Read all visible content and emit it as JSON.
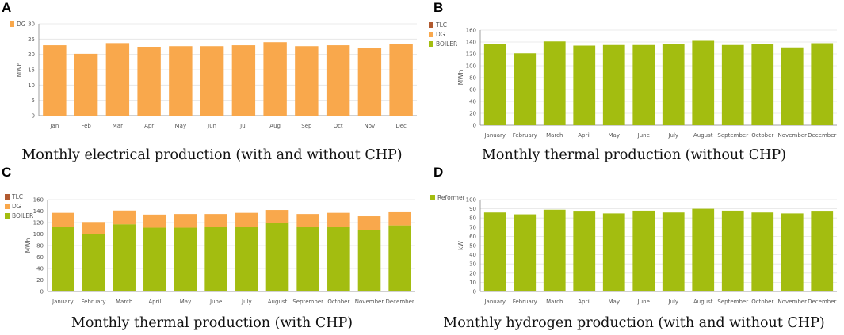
{
  "colors": {
    "BOILER": "#a3bd10",
    "DG": "#f9a84c",
    "TLC": "#b15a30",
    "Reformer": "#a3bd10",
    "grid": "#e4e4e4",
    "axis": "#888888"
  },
  "chart_data": [
    {
      "id": "A",
      "letter": "A",
      "caption": "Monthly electrical production (with and without CHP)",
      "type": "bar",
      "ylabel": "MWh",
      "ylim": [
        0,
        30
      ],
      "yticks": [
        0,
        5,
        10,
        15,
        20,
        25,
        30
      ],
      "categories": [
        "Jan",
        "Feb",
        "Mar",
        "Apr",
        "May",
        "Jun",
        "Jul",
        "Aug",
        "Sep",
        "Oct",
        "Nov",
        "Dec"
      ],
      "legend": [
        "DG"
      ],
      "series": [
        {
          "name": "DG",
          "values": [
            23,
            20.2,
            23.7,
            22.5,
            22.7,
            22.7,
            23,
            24,
            22.7,
            23,
            22,
            23.3
          ]
        }
      ]
    },
    {
      "id": "B",
      "letter": "B",
      "caption": "Monthly thermal production (without CHP)",
      "type": "bar",
      "ylabel": "MWh",
      "ylim": [
        0,
        160
      ],
      "yticks": [
        0,
        20,
        40,
        60,
        80,
        100,
        120,
        140,
        160
      ],
      "categories": [
        "January",
        "February",
        "March",
        "April",
        "May",
        "June",
        "July",
        "August",
        "September",
        "October",
        "November",
        "December"
      ],
      "legend": [
        "TLC",
        "DG",
        "BOILER"
      ],
      "series": [
        {
          "name": "BOILER",
          "values": [
            137,
            121,
            141,
            134,
            135,
            135,
            137,
            142,
            135,
            137,
            131,
            138
          ]
        }
      ]
    },
    {
      "id": "C",
      "letter": "C",
      "caption": "Monthly thermal production (with CHP)",
      "type": "bar",
      "stacked": true,
      "ylabel": "MWh",
      "ylim": [
        0,
        160
      ],
      "yticks": [
        0,
        20,
        40,
        60,
        80,
        100,
        120,
        140,
        160
      ],
      "categories": [
        "January",
        "February",
        "March",
        "April",
        "May",
        "June",
        "July",
        "August",
        "September",
        "October",
        "November",
        "December"
      ],
      "legend": [
        "TLC",
        "DG",
        "BOILER"
      ],
      "series": [
        {
          "name": "BOILER",
          "values": [
            113,
            100,
            117,
            111,
            111,
            112,
            113,
            119,
            112,
            113,
            107,
            115
          ]
        },
        {
          "name": "DG",
          "values": [
            24,
            21,
            24,
            23,
            24,
            23,
            24,
            23,
            23,
            24,
            24,
            23
          ]
        }
      ]
    },
    {
      "id": "D",
      "letter": "D",
      "caption": "Monthly hydrogen production (with and without CHP)",
      "type": "bar",
      "ylabel": "kW",
      "ylim": [
        0,
        100
      ],
      "yticks": [
        0,
        10,
        20,
        30,
        40,
        50,
        60,
        70,
        80,
        90,
        100
      ],
      "categories": [
        "January",
        "February",
        "March",
        "April",
        "May",
        "June",
        "July",
        "August",
        "September",
        "October",
        "November",
        "December"
      ],
      "legend": [
        "Reformer"
      ],
      "series": [
        {
          "name": "Reformer",
          "values": [
            86,
            84,
            89,
            87,
            85,
            88,
            86,
            90,
            88,
            86,
            85,
            87
          ]
        }
      ]
    }
  ]
}
